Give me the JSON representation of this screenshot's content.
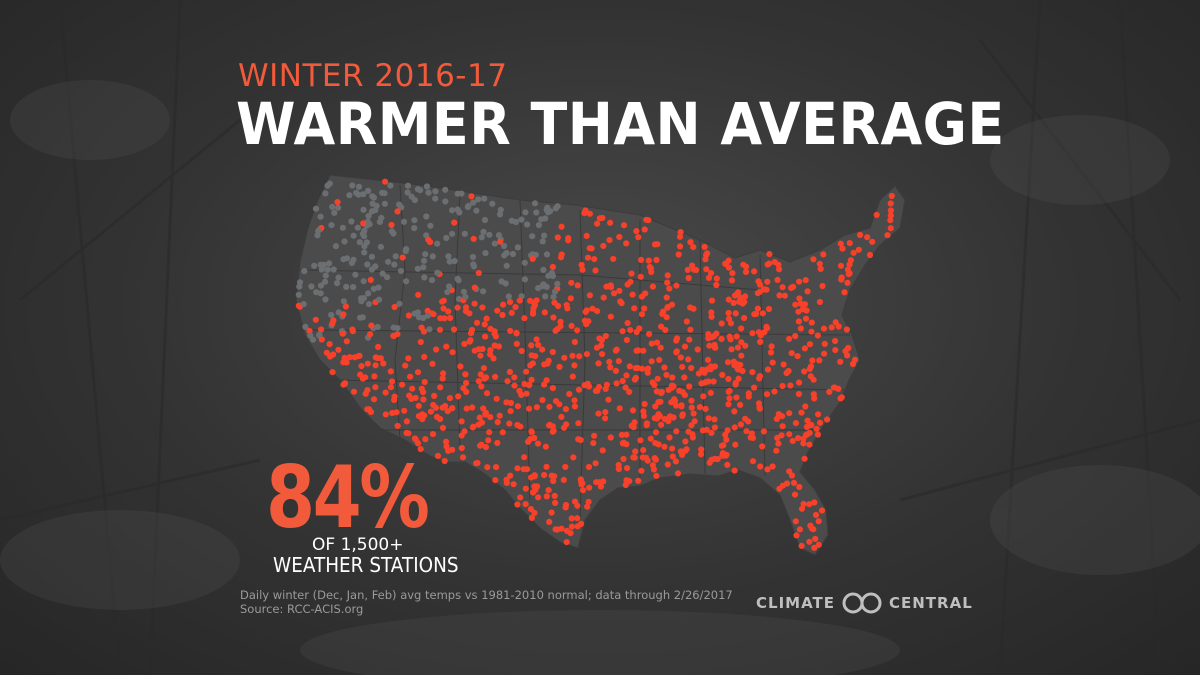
{
  "header": {
    "subtitle": "WINTER 2016-17",
    "title": "WARMER THAN AVERAGE"
  },
  "stat": {
    "value": "84%",
    "line1": "OF 1,500+",
    "line2": "WEATHER STATIONS"
  },
  "footnote": {
    "line1": "Daily winter (Dec, Jan, Feb) avg temps vs 1981-2010 normal; data through 2/26/2017",
    "line2": "Source: RCC-ACIS.org"
  },
  "logo": {
    "left": "CLIMATE",
    "right": "CENTRAL"
  },
  "colors": {
    "warm_station": "#f7412a",
    "other_station": "#6c6f72",
    "land": "#4b4b4b",
    "accent": "#f15a3a"
  }
}
